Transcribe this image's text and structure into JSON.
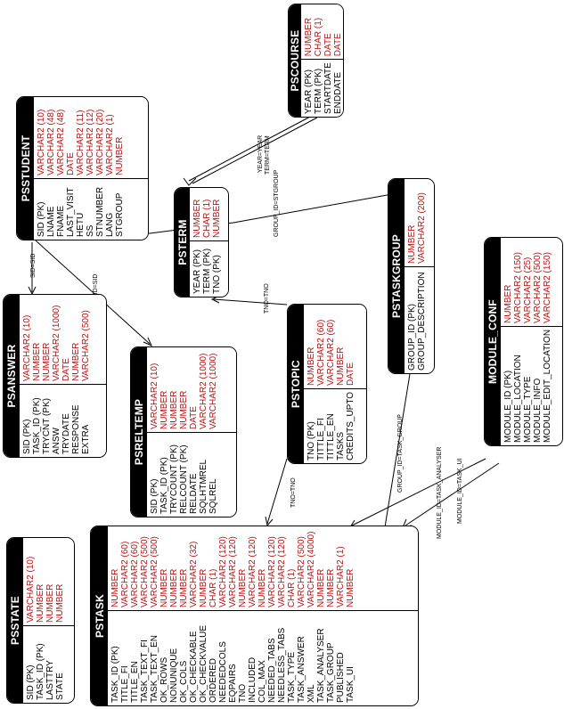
{
  "entities": {
    "pscourse": {
      "name": "PSCOURSE",
      "fields": [
        {
          "name": "YEAR (PK)",
          "type": "NUMBER"
        },
        {
          "name": "TERM (PK)",
          "type": "CHAR (1)"
        },
        {
          "name": "STARTDATE",
          "type": "DATE"
        },
        {
          "name": "ENDDATE",
          "type": "DATE"
        }
      ]
    },
    "psstudent": {
      "name": "PSSTUDENT",
      "fields": [
        {
          "name": "SID (PK)",
          "type": "VARCHAR2 (10)"
        },
        {
          "name": "LNAME",
          "type": "VARCHAR2 (48)"
        },
        {
          "name": "FNAME",
          "type": "VARCHAR2 (48)"
        },
        {
          "name": "LAST_VISIT",
          "type": "DATE"
        },
        {
          "name": "HETU",
          "type": "VARCHAR2 (11)"
        },
        {
          "name": "SS",
          "type": "VARCHAR2 (12)"
        },
        {
          "name": "STNUMBER",
          "type": "VARCHAR2 (20)"
        },
        {
          "name": "LANG",
          "type": "VARCHAR2 (1)"
        },
        {
          "name": "STGROUP",
          "type": "NUMBER"
        }
      ]
    },
    "psterm": {
      "name": "PSTERM",
      "fields": [
        {
          "name": "YEAR (PK)",
          "type": "NUMBER"
        },
        {
          "name": "TERM (PK)",
          "type": "CHAR (1)"
        },
        {
          "name": "TNO (PK)",
          "type": "NUMBER"
        }
      ]
    },
    "pstaskgroup": {
      "name": "PSTASKGROUP",
      "fields": [
        {
          "name": "GROUP_ID (PK)",
          "type": "NUMBER"
        },
        {
          "name": "GROUP_DESCRIPTION",
          "type": "VARCHAR2 (200)"
        }
      ]
    },
    "module_conf": {
      "name": "MODULE_CONF",
      "fields": [
        {
          "name": "MODULE_ID (PK)",
          "type": "NUMBER"
        },
        {
          "name": "MODULE_LOCATION",
          "type": "VARCHAR2 (150)"
        },
        {
          "name": "MODULE_TYPE",
          "type": "VARCHAR2 (25)"
        },
        {
          "name": "MODULE_INFO",
          "type": "VARCHAR2 (500)"
        },
        {
          "name": "MODULE_EDIT_LOCATION",
          "type": "VARCHAR2 (150)"
        }
      ]
    },
    "psanswer": {
      "name": "PSANSWER",
      "fields": [
        {
          "name": "SID (PK)",
          "type": "VARCHAR2 (10)"
        },
        {
          "name": "TASK_ID (PK)",
          "type": "NUMBER"
        },
        {
          "name": "TRYCNT (PK)",
          "type": "NUMBER"
        },
        {
          "name": "ANSW",
          "type": "VARCHAR2 (1000)"
        },
        {
          "name": "TRYDATE",
          "type": "DATE"
        },
        {
          "name": "RESPONSE",
          "type": "NUMBER"
        },
        {
          "name": "EXTRA",
          "type": "VARCHAR2 (500)"
        }
      ]
    },
    "psreltemp": {
      "name": "PSRELTEMP",
      "fields": [
        {
          "name": "SID (PK)",
          "type": "VARCHAR2 (10)"
        },
        {
          "name": "TASK_ID (PK)",
          "type": "NUMBER"
        },
        {
          "name": "TRYCOUNT (PK)",
          "type": "NUMBER"
        },
        {
          "name": "RELCOUNT (PK)",
          "type": "NUMBER"
        },
        {
          "name": "RELDATE",
          "type": "DATE"
        },
        {
          "name": "SQLHTMREL",
          "type": "VARCHAR2 (1000)"
        },
        {
          "name": "SQLREL",
          "type": "VARCHAR2 (1000)"
        }
      ]
    },
    "pstopic": {
      "name": "PSTOPIC",
      "fields": [
        {
          "name": "TNO (PK)",
          "type": "NUMBER"
        },
        {
          "name": "TITTLE_FI",
          "type": "VARCHAR2 (60)"
        },
        {
          "name": "TITTLE_EN",
          "type": "VARCHAR2 (60)"
        },
        {
          "name": "TASKS",
          "type": "NUMBER"
        },
        {
          "name": "CREDITS_UPTO",
          "type": "DATE"
        }
      ]
    },
    "psstate": {
      "name": "PSSTATE",
      "fields": [
        {
          "name": "SID (PK)",
          "type": "VARCHAR2 (10)"
        },
        {
          "name": "TASK_ID (PK)",
          "type": "NUMBER"
        },
        {
          "name": "LASTTRY",
          "type": "NUMBER"
        },
        {
          "name": "STATE",
          "type": "NUMBER"
        }
      ]
    },
    "pstask": {
      "name": "PSTASK",
      "fields": [
        {
          "name": "TASK_ID (PK)",
          "type": "NUMBER"
        },
        {
          "name": "TITLE_FI",
          "type": "VARCHAR2 (60)"
        },
        {
          "name": "TITLE_EN",
          "type": "VARCHAR2 (60)"
        },
        {
          "name": "TASK_TEXT_FI",
          "type": "VARCHAR2 (500)"
        },
        {
          "name": "TASK_TEXT_EN",
          "type": "VARCHAR2 (500)"
        },
        {
          "name": "OK_ROWS",
          "type": "NUMBER"
        },
        {
          "name": "NONUNIQUE",
          "type": "NUMBER"
        },
        {
          "name": "OK_COLS",
          "type": "NUMBER"
        },
        {
          "name": "OK_CHECKABLE",
          "type": "VARCHAR2 (32)"
        },
        {
          "name": "OK_CHECKVALUE",
          "type": "NUMBER"
        },
        {
          "name": "ORDERED",
          "type": "CHAR (1)"
        },
        {
          "name": "NEEDEDCOLS",
          "type": "VARCHAR2 (120)"
        },
        {
          "name": "EQPAIRS",
          "type": "VARCHAR2 (120)"
        },
        {
          "name": "TNO",
          "type": "NUMBER"
        },
        {
          "name": "INCLUDED",
          "type": "VARCHAR2 (120)"
        },
        {
          "name": "COL_MAX",
          "type": "NUMBER"
        },
        {
          "name": "NEEDED_TABS",
          "type": "VARCHAR2 (120)"
        },
        {
          "name": "NEEDLESS_TABS",
          "type": "VARCHAR2 (120)"
        },
        {
          "name": "TASK_TYPE",
          "type": "CHAR (1)"
        },
        {
          "name": "TASK_ANSWER",
          "type": "VARCHAR2 (500)"
        },
        {
          "name": "XML",
          "type": "VARCHAR2 (4000)"
        },
        {
          "name": "TASK_ANALYSER",
          "type": "NUMBER"
        },
        {
          "name": "TASK_GROUP",
          "type": "NUMBER"
        },
        {
          "name": "PUBLISHED",
          "type": "VARCHAR2 (1)"
        },
        {
          "name": "TASK_UI",
          "type": "NUMBER"
        }
      ]
    }
  },
  "relations": {
    "year_year": "YEAR=YEAR",
    "term_term": "TERM=TERM",
    "group_id_stgroup": "GROUP_ID=STGROUP",
    "sid_sid_answer": "SID=SID",
    "sid_sid_reltemp": "SID=SID",
    "tno_tno_term": "TNO=TNO",
    "tno_tno_task": "TNO=TNO",
    "group_id_task_group": "GROUP_ID=TASK_GROUP",
    "module_id_task_analyser": "MODULE_ID=TASK_ANALYSER",
    "module_id_task_ui": "MODULE_ID=TASK_UI"
  }
}
